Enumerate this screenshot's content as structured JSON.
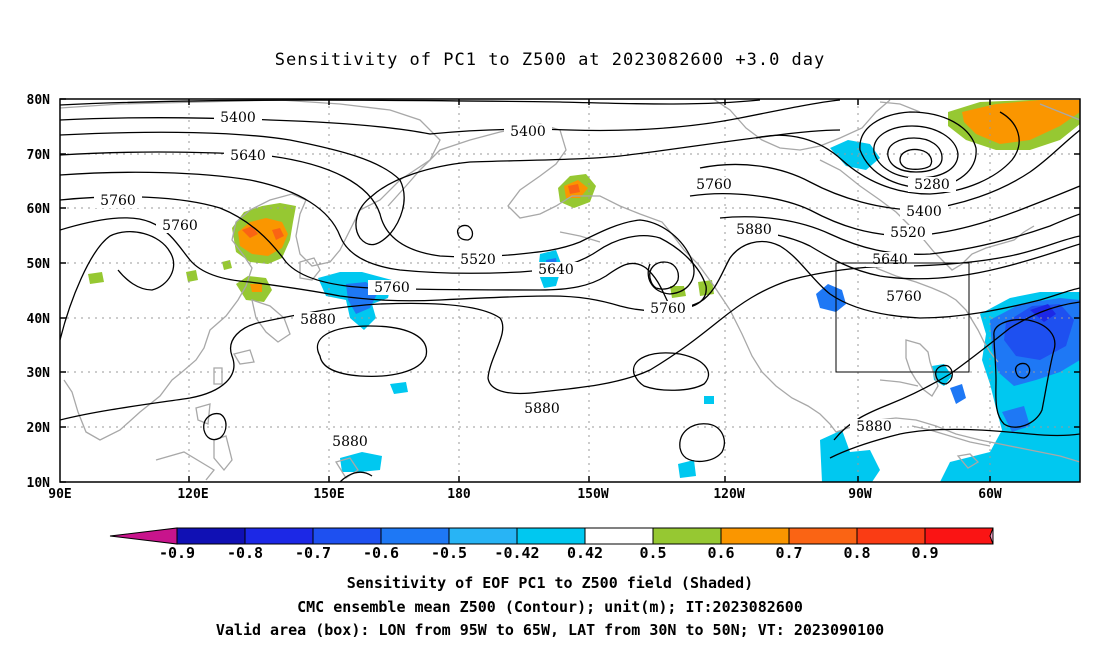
{
  "title": "Sensitivity of PC1 to Z500 at 2023082600 +3.0 day",
  "captions": [
    "Sensitivity of EOF PC1 to Z500 field (Shaded)",
    "CMC ensemble mean Z500 (Contour); unit(m); IT:2023082600",
    "Valid area (box): LON from 95W to 65W, LAT from 30N to 50N; VT: 2023090100"
  ],
  "map": {
    "lon_range": [
      "90E",
      "50W"
    ],
    "lat_range": [
      "10N",
      "80N"
    ],
    "grid": "dotted",
    "lat_ticks": [
      "80N",
      "70N",
      "60N",
      "50N",
      "40N",
      "30N",
      "20N",
      "10N"
    ],
    "lon_ticks": [
      "90E",
      "120E",
      "150E",
      "180",
      "150W",
      "120W",
      "90W",
      "60W"
    ],
    "valid_box": {
      "lon_from": "95W",
      "lon_to": "65W",
      "lat_from": "30N",
      "lat_to": "50N"
    },
    "contour_labels": [
      "5400",
      "5400",
      "5640",
      "5760",
      "5760",
      "5520",
      "5640",
      "5760",
      "5760",
      "5880",
      "5880",
      "5280",
      "5400",
      "5520",
      "5640",
      "5760",
      "5760",
      "5880",
      "5880",
      "5880",
      "5880"
    ]
  },
  "colorbar": {
    "labels": [
      "-0.9",
      "-0.8",
      "-0.7",
      "-0.6",
      "-0.5",
      "-0.42",
      "0.42",
      "0.5",
      "0.6",
      "0.7",
      "0.8",
      "0.9"
    ],
    "colors": [
      "#c8148c",
      "#1010b4",
      "#1c28e6",
      "#1e50f0",
      "#1e78f5",
      "#28b4f5",
      "#00c8f0",
      "#ffffff",
      "#96c832",
      "#fa9600",
      "#fa6414",
      "#fa3c14",
      "#fa1414",
      "#f5a0c8"
    ]
  },
  "colors": {
    "contour": "#000000",
    "coast": "#a8a8a8",
    "grid": "#9a9a9a"
  }
}
